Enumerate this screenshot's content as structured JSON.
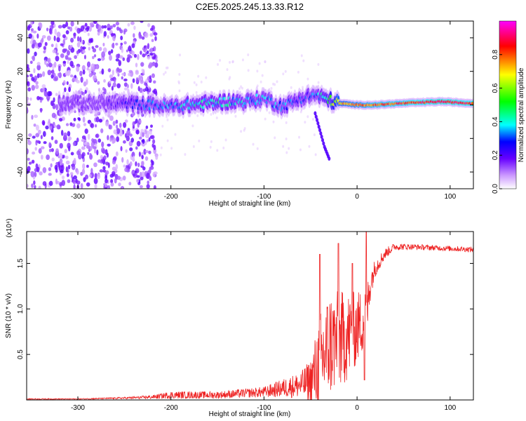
{
  "page": {
    "title": "C2E5.2025.245.13.33.R12"
  },
  "chart_data": [
    {
      "type": "heatmap",
      "title": "C2E5.2025.245.13.33.R12",
      "xlabel": "Height of straight line (km)",
      "ylabel": "Frequency (Hz)",
      "xlim": [
        -355,
        125
      ],
      "ylim": [
        -50,
        50
      ],
      "x_ticks": [
        -300,
        -200,
        -100,
        0,
        100
      ],
      "y_ticks": [
        -40,
        -20,
        0,
        20,
        40
      ],
      "colorbar": {
        "label": "Normalized spectral amplitude",
        "range": [
          0,
          1
        ],
        "ticks": [
          "0.0",
          "0.2",
          "0.4",
          "0.6",
          "0.8"
        ],
        "stops": [
          "#ffffff",
          "#9933ff",
          "#0000ff",
          "#00ffff",
          "#00ff00",
          "#ffff00",
          "#ff0000",
          "#ff00ff"
        ]
      },
      "ridge": {
        "x": [
          -300,
          -260,
          -220,
          -200,
          -180,
          -160,
          -140,
          -120,
          -100,
          -80,
          -60,
          -45,
          -30,
          -20,
          0,
          20,
          50,
          90,
          120
        ],
        "freq": [
          1,
          1,
          0,
          -1,
          0,
          1,
          2,
          2,
          4,
          -1,
          4,
          6,
          3,
          1,
          0,
          0,
          1,
          2,
          1
        ],
        "amplitude": [
          0.1,
          0.15,
          0.3,
          0.35,
          0.38,
          0.4,
          0.38,
          0.36,
          0.35,
          0.3,
          0.25,
          0.3,
          0.5,
          0.7,
          0.75,
          0.8,
          0.82,
          0.9,
          0.85
        ]
      },
      "side_branch": {
        "x": [
          -45,
          -40,
          -35,
          -30
        ],
        "freq": [
          -5,
          -15,
          -25,
          -32
        ]
      }
    },
    {
      "type": "line",
      "xlabel": "Height of straight line (km)",
      "ylabel": "SNR (10 * v/v)",
      "y_multiplier": "(x10⁴)",
      "xlim": [
        -355,
        125
      ],
      "ylim": [
        0,
        1.85
      ],
      "x_ticks": [
        -300,
        -200,
        -100,
        0,
        100
      ],
      "y_ticks": [
        "0.5",
        "1.0",
        "1.5"
      ],
      "color": "#ee2222",
      "series": [
        {
          "name": "SNR",
          "x": [
            -355,
            -300,
            -250,
            -220,
            -200,
            -180,
            -150,
            -120,
            -100,
            -80,
            -60,
            -50,
            -40,
            -30,
            -20,
            -10,
            0,
            10,
            15,
            20,
            30,
            40,
            60,
            80,
            100,
            125
          ],
          "y": [
            0.01,
            0.01,
            0.02,
            0.03,
            0.05,
            0.05,
            0.05,
            0.07,
            0.08,
            0.12,
            0.15,
            0.18,
            0.35,
            0.55,
            0.6,
            0.65,
            0.75,
            0.9,
            1.3,
            1.45,
            1.6,
            1.68,
            1.68,
            1.67,
            1.66,
            1.65
          ],
          "noise": [
            0.005,
            0.005,
            0.01,
            0.02,
            0.04,
            0.04,
            0.04,
            0.05,
            0.06,
            0.1,
            0.15,
            0.25,
            0.55,
            0.6,
            0.55,
            0.5,
            0.4,
            0.35,
            0.15,
            0.1,
            0.06,
            0.04,
            0.03,
            0.03,
            0.03,
            0.03
          ],
          "peaks": [
            [
              -40,
              1.6
            ],
            [
              -20,
              1.72
            ],
            [
              -5,
              1.5
            ],
            [
              10,
              1.86
            ],
            [
              8,
              0.22
            ]
          ]
        }
      ]
    }
  ]
}
